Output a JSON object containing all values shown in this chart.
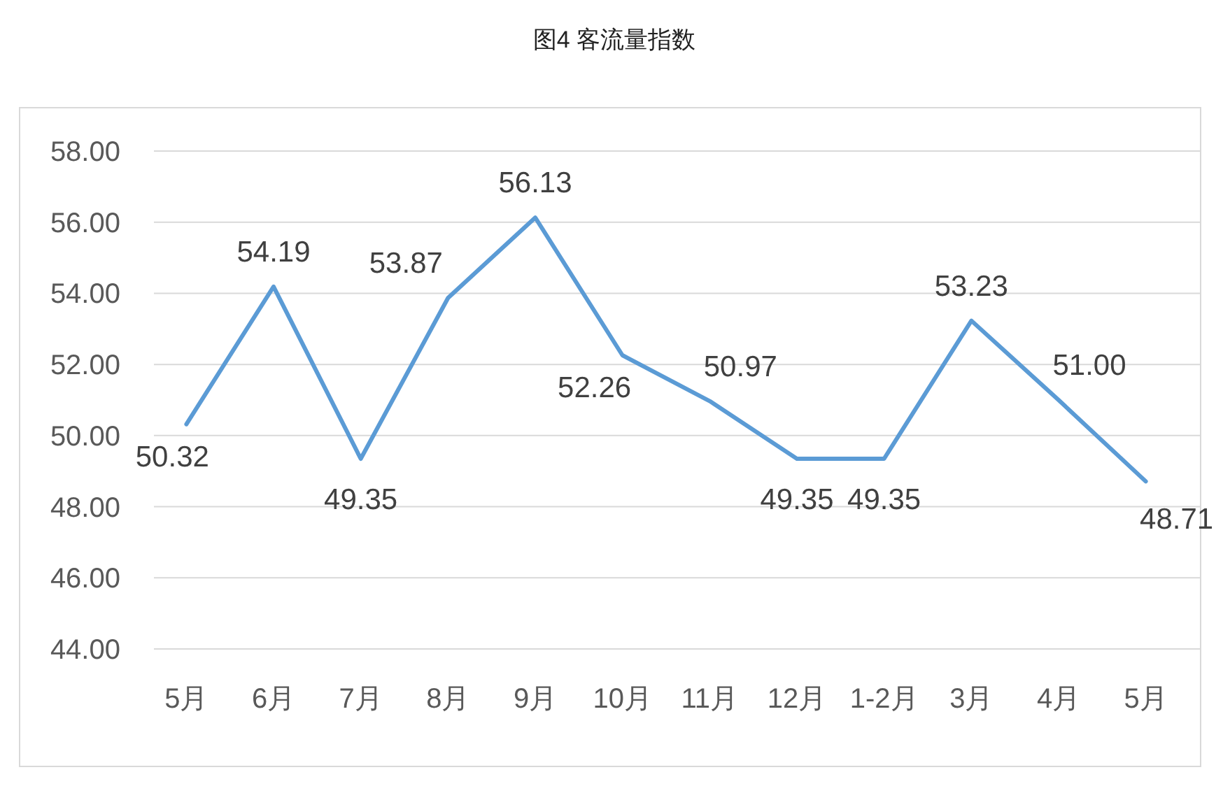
{
  "chart_data": {
    "type": "line",
    "title": "图4 客流量指数",
    "categories": [
      "5月",
      "6月",
      "7月",
      "8月",
      "9月",
      "10月",
      "11月",
      "12月",
      "1-2月",
      "3月",
      "4月",
      "5月"
    ],
    "series": [
      {
        "color": "#5b9bd5",
        "values": [
          50.32,
          54.19,
          49.35,
          53.87,
          56.13,
          52.26,
          50.97,
          49.35,
          49.35,
          53.23,
          51.0,
          48.71
        ],
        "value_labels": [
          "50.32",
          "54.19",
          "49.35",
          "53.87",
          "56.13",
          "52.26",
          "50.97",
          "49.35",
          "49.35",
          "53.23",
          "51.00",
          "48.71"
        ]
      }
    ],
    "ylim": [
      44,
      58
    ],
    "yticks": [
      {
        "value": 44,
        "label": "44.00"
      },
      {
        "value": 46,
        "label": "46.00"
      },
      {
        "value": 48,
        "label": "48.00"
      },
      {
        "value": 50,
        "label": "50.00"
      },
      {
        "value": 52,
        "label": "52.00"
      },
      {
        "value": 54,
        "label": "54.00"
      },
      {
        "value": 56,
        "label": "56.00"
      },
      {
        "value": 58,
        "label": "58.00"
      }
    ],
    "grid": "y"
  }
}
